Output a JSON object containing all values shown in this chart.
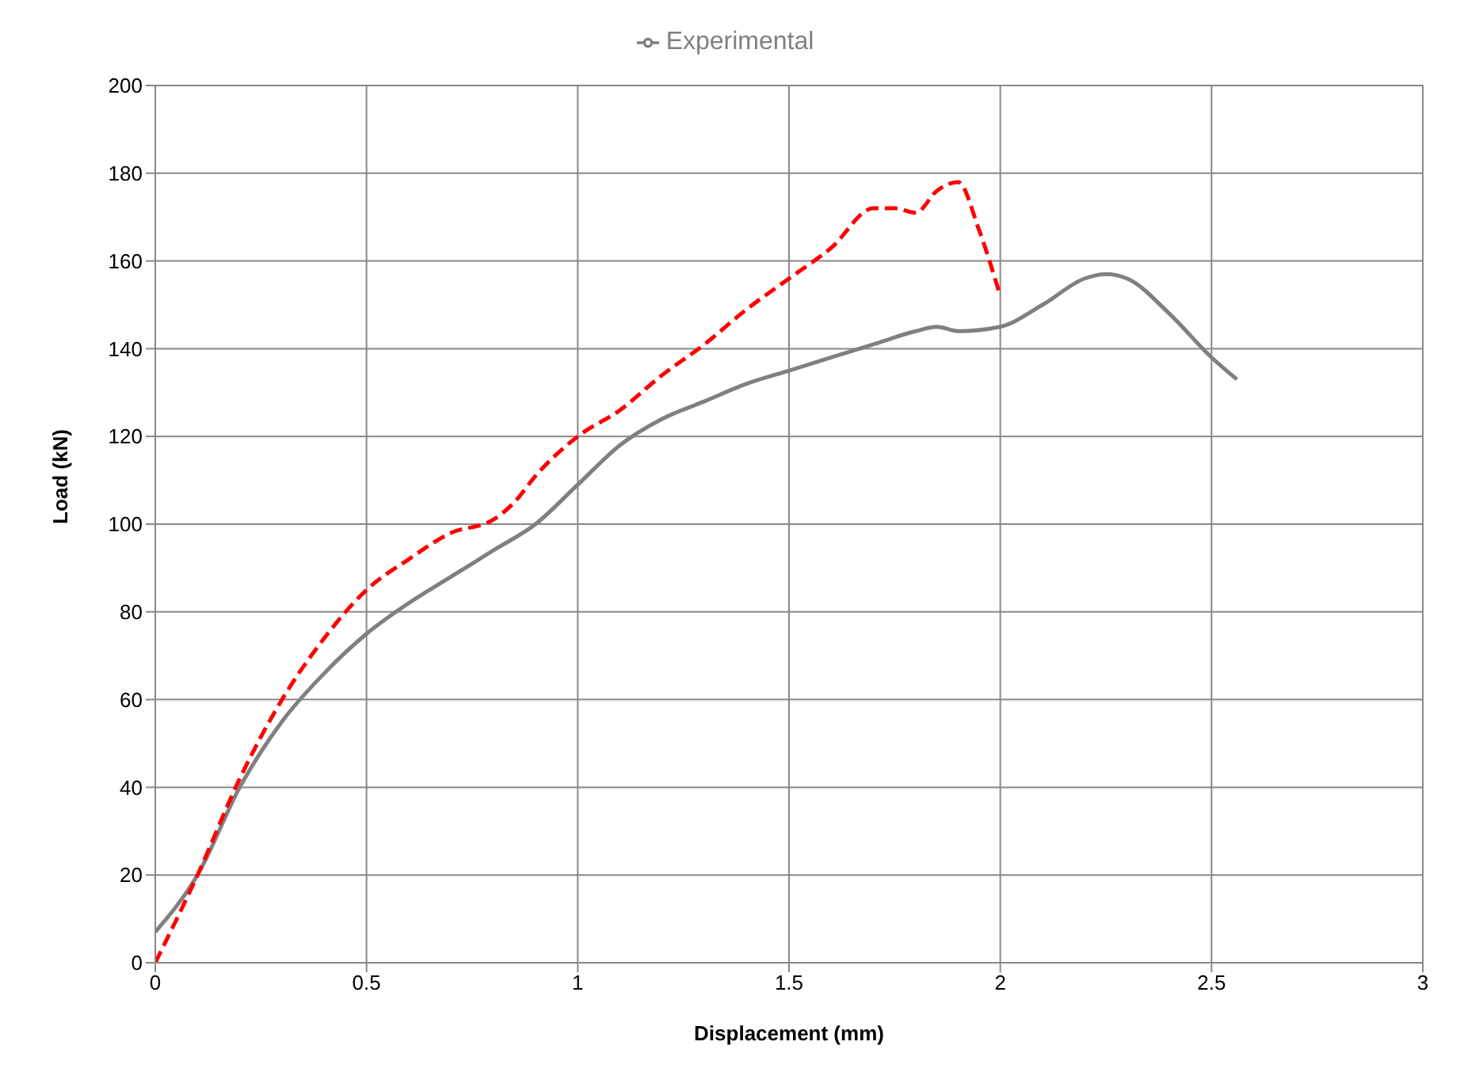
{
  "chart_data": {
    "type": "line",
    "xlabel": "Displacement (mm)",
    "ylabel": "Load (kN)",
    "xlim": [
      0,
      3
    ],
    "xticks": [
      0,
      0.5,
      1,
      1.5,
      2,
      2.5,
      3
    ],
    "ylim": [
      0,
      200
    ],
    "yticks": [
      0,
      20,
      40,
      60,
      80,
      100,
      120,
      140,
      160,
      180,
      200
    ],
    "grid": true,
    "legend": "top",
    "marker": "none",
    "series": [
      {
        "name": "Experimental",
        "color": "#808080",
        "line_style": "solid",
        "x": [
          0,
          0.1,
          0.2,
          0.3,
          0.4,
          0.5,
          0.6,
          0.7,
          0.8,
          0.9,
          1.0,
          1.1,
          1.2,
          1.3,
          1.4,
          1.5,
          1.6,
          1.7,
          1.8,
          1.85,
          1.9,
          2.0,
          2.1,
          2.2,
          2.25,
          2.3,
          2.4,
          2.5,
          2.56
        ],
        "values": [
          7,
          20,
          40,
          55,
          66,
          75,
          82,
          88,
          94,
          100,
          109,
          118,
          124,
          128,
          132,
          135,
          138,
          141,
          144,
          145,
          144,
          145,
          150,
          156,
          157,
          156,
          148,
          138,
          133
        ]
      },
      {
        "color": "#ff0000",
        "line_style": "dashed",
        "x": [
          0,
          0.1,
          0.2,
          0.3,
          0.4,
          0.5,
          0.6,
          0.7,
          0.8,
          0.85,
          0.9,
          1.0,
          1.1,
          1.2,
          1.3,
          1.4,
          1.5,
          1.6,
          1.7,
          1.75,
          1.8,
          1.85,
          1.9,
          1.95,
          2.0
        ],
        "values": [
          0,
          20,
          42,
          60,
          74,
          85,
          92,
          98,
          101,
          105,
          111,
          120,
          126,
          134,
          141,
          149,
          156,
          163,
          172,
          172,
          171,
          176,
          178,
          167,
          152
        ]
      }
    ]
  }
}
